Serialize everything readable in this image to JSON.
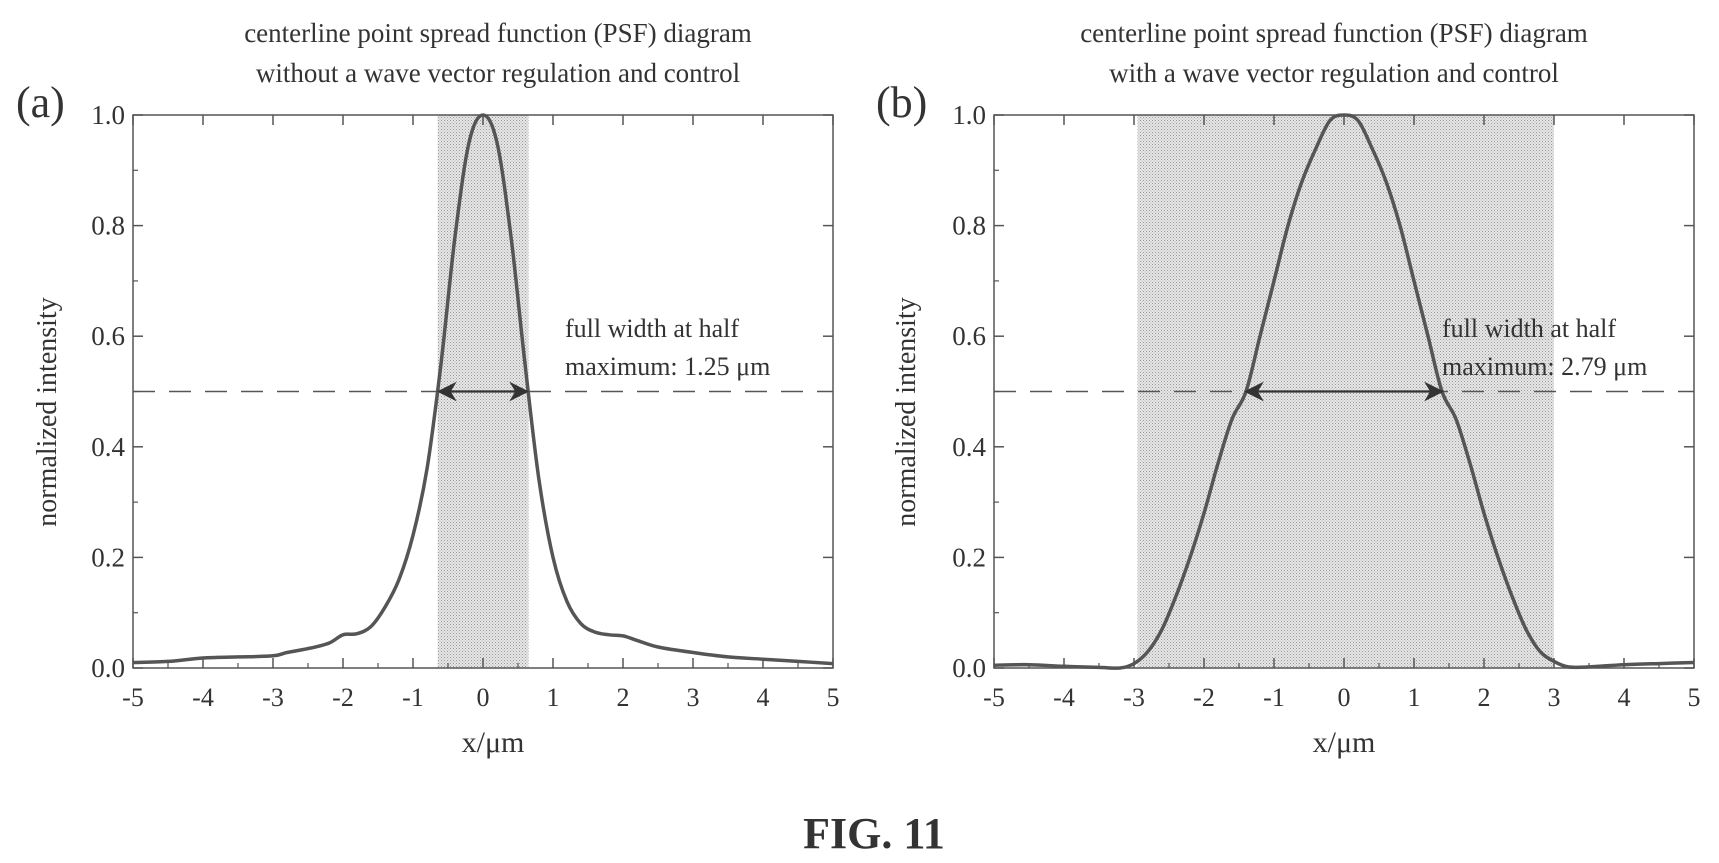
{
  "figure": {
    "caption": "FIG. 11"
  },
  "chart_data": [
    {
      "type": "line",
      "panel_label": "(a)",
      "title_lines": [
        "centerline point spread function (PSF) diagram",
        "without a wave vector regulation and control"
      ],
      "xlabel": "x/μm",
      "ylabel": "normalized intensity",
      "xlim": [
        -5,
        5
      ],
      "ylim": [
        0,
        1.0
      ],
      "x_ticks": [
        "-5",
        "-4",
        "-3",
        "-2",
        "-1",
        "0",
        "1",
        "2",
        "3",
        "4",
        "5"
      ],
      "y_ticks": [
        "0.0",
        "0.2",
        "0.4",
        "0.6",
        "0.8",
        "1.0"
      ],
      "shaded_region": [
        -0.65,
        0.65
      ],
      "half_max_line": 0.5,
      "fwhm_arrow": [
        -0.63,
        0.63
      ],
      "annotation_lines": [
        "full width at half",
        "maximum: 1.25 μm"
      ],
      "series": [
        {
          "x": [
            -5,
            -4.5,
            -4,
            -3.5,
            -3,
            -2.8,
            -2.5,
            -2.2,
            -2,
            -1.8,
            -1.6,
            -1.4,
            -1.2,
            -1.0,
            -0.8,
            -0.6,
            -0.4,
            -0.2,
            0,
            0.2,
            0.4,
            0.6,
            0.8,
            1.0,
            1.2,
            1.4,
            1.6,
            1.8,
            2.0,
            2.2,
            2.5,
            3.0,
            3.5,
            4.0,
            4.5,
            5.0
          ],
          "y": [
            0.01,
            0.012,
            0.018,
            0.02,
            0.022,
            0.028,
            0.035,
            0.045,
            0.06,
            0.062,
            0.075,
            0.11,
            0.16,
            0.24,
            0.36,
            0.55,
            0.78,
            0.95,
            1.0,
            0.95,
            0.78,
            0.55,
            0.34,
            0.2,
            0.12,
            0.08,
            0.065,
            0.06,
            0.058,
            0.05,
            0.038,
            0.028,
            0.02,
            0.016,
            0.012,
            0.008
          ]
        }
      ]
    },
    {
      "type": "line",
      "panel_label": "(b)",
      "title_lines": [
        "centerline point spread function (PSF) diagram",
        "with a wave vector regulation and control"
      ],
      "xlabel": "x/μm",
      "ylabel": "normalized intensity",
      "xlim": [
        -5,
        5
      ],
      "ylim": [
        0,
        1.0
      ],
      "x_ticks": [
        "-5",
        "-4",
        "-3",
        "-2",
        "-1",
        "0",
        "1",
        "2",
        "3",
        "4",
        "5"
      ],
      "y_ticks": [
        "0.0",
        "0.2",
        "0.4",
        "0.6",
        "0.8",
        "1.0"
      ],
      "shaded_region": [
        -2.95,
        3.0
      ],
      "half_max_line": 0.5,
      "fwhm_arrow": [
        -1.4,
        1.4
      ],
      "annotation_lines": [
        "full width at half",
        "maximum: 2.79 μm"
      ],
      "series": [
        {
          "x": [
            -5,
            -4.5,
            -4,
            -3.5,
            -3.2,
            -3.0,
            -2.8,
            -2.6,
            -2.4,
            -2.2,
            -2.0,
            -1.8,
            -1.6,
            -1.4,
            -1.2,
            -1.0,
            -0.8,
            -0.6,
            -0.4,
            -0.2,
            0,
            0.2,
            0.4,
            0.6,
            0.8,
            1.0,
            1.2,
            1.4,
            1.6,
            1.8,
            2.0,
            2.2,
            2.4,
            2.6,
            2.8,
            3.0,
            3.2,
            3.5,
            4.0,
            4.5,
            5.0
          ],
          "y": [
            0.005,
            0.006,
            0.003,
            0.001,
            0.0,
            0.008,
            0.03,
            0.07,
            0.13,
            0.2,
            0.28,
            0.37,
            0.45,
            0.5,
            0.6,
            0.7,
            0.8,
            0.88,
            0.94,
            0.99,
            1.0,
            0.99,
            0.94,
            0.88,
            0.8,
            0.7,
            0.6,
            0.5,
            0.45,
            0.37,
            0.28,
            0.2,
            0.13,
            0.07,
            0.03,
            0.012,
            0.002,
            0.002,
            0.006,
            0.008,
            0.01
          ]
        }
      ]
    }
  ]
}
